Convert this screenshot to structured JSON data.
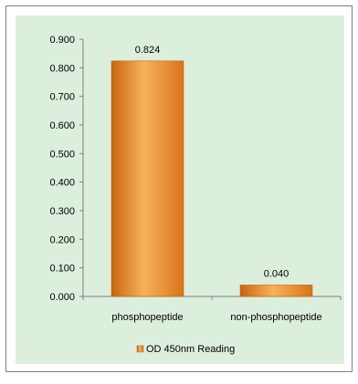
{
  "chart_data": {
    "type": "bar",
    "categories": [
      "phosphopeptide",
      "non-phosphopeptide"
    ],
    "series": [
      {
        "name": "OD 450nm Reading",
        "values": [
          0.824,
          0.04
        ]
      }
    ],
    "data_labels": [
      "0.824",
      "0.040"
    ],
    "y_ticks": [
      "0.000",
      "0.100",
      "0.200",
      "0.300",
      "0.400",
      "0.500",
      "0.600",
      "0.700",
      "0.800",
      "0.900"
    ],
    "ylim": [
      0,
      0.9
    ],
    "grid": false,
    "legend_position": "bottom",
    "colors": {
      "bar": "#ed8b26",
      "bar_light": "#f6b25a",
      "bar_dark": "#c8640f",
      "background": "#dcefdc",
      "axis": "#808080"
    }
  }
}
